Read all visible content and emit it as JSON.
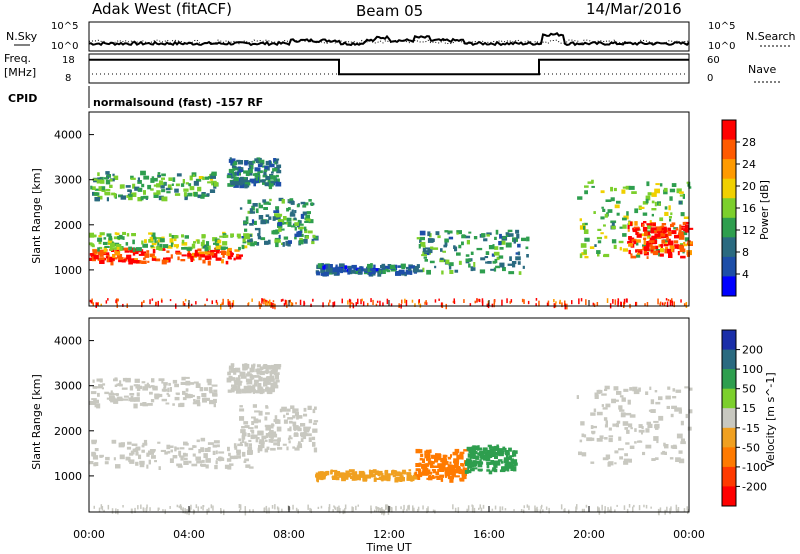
{
  "header": {
    "station": "Adak West (fitACF)",
    "beam": "Beam 05",
    "date": "14/Mar/2016"
  },
  "top_panels": {
    "nsky_label": "N.Sky",
    "nsky_ticks": [
      "10^5",
      "10^0"
    ],
    "nsearch_label": "N.Search",
    "nsearch_ticks": [
      "10^5",
      "10^0"
    ],
    "freq_label": "Freq.",
    "freq_unit": "[MHz]",
    "freq_ticks": [
      "18",
      "8"
    ],
    "nave_label": "Nave",
    "nave_ticks": [
      "60",
      "0"
    ],
    "cpid_label": "CPID",
    "cpid_text": "normalsound (fast) -157 RF"
  },
  "x_axis": {
    "label": "Time UT",
    "ticks": [
      "00:00",
      "04:00",
      "08:00",
      "12:00",
      "16:00",
      "20:00",
      "00:00"
    ]
  },
  "power_colorbar": {
    "label": "Power [dB]",
    "ticks": [
      "28",
      "24",
      "20",
      "16",
      "12",
      "8",
      "4"
    ],
    "colors": [
      "#ff0000",
      "#ff5a00",
      "#ff9a00",
      "#f0d000",
      "#7ccf2c",
      "#2e9e4e",
      "#2a6a80",
      "#1d4ea8",
      "#0000ff"
    ]
  },
  "velocity_colorbar": {
    "label": "Velocity [m s^-1]",
    "ticks": [
      "200",
      "100",
      "50",
      "15",
      "-15",
      "-50",
      "-100",
      "-200"
    ],
    "colors": [
      "#1a2ea8",
      "#2a6a80",
      "#2e9e4e",
      "#7ccf2c",
      "#c8c8c0",
      "#f0a020",
      "#ff7a00",
      "#ff3a00",
      "#ff0000"
    ]
  },
  "chart_data": [
    {
      "type": "line",
      "name": "N.Sky / N.Search",
      "x": [
        0,
        1,
        2,
        3,
        4,
        5,
        6,
        7,
        8,
        9,
        10,
        11,
        11.5,
        12,
        13,
        13.6,
        14,
        15,
        16,
        17,
        18,
        18.1,
        19,
        20,
        21,
        22,
        23,
        24
      ],
      "y": [
        1,
        1,
        1,
        1,
        1,
        1,
        1,
        1,
        2,
        2,
        1,
        2,
        3,
        2,
        3,
        2,
        2,
        1,
        1,
        1,
        1,
        4,
        1,
        1,
        1,
        1,
        1,
        1
      ],
      "xlim": [
        0,
        24
      ]
    },
    {
      "type": "line",
      "name": "Freq.",
      "x": [
        0,
        10,
        10,
        18,
        18,
        24
      ],
      "y": [
        16,
        16,
        11,
        11,
        16,
        16
      ],
      "ylim": [
        8,
        18
      ]
    },
    {
      "type": "heatmap",
      "title": "Power [dB]",
      "xlabel": "Time UT",
      "ylabel": "Slant Range [km]",
      "xlim": [
        0,
        24
      ],
      "ylim": [
        200,
        4500
      ],
      "yticks": [
        "1000",
        "2000",
        "3000",
        "4000"
      ],
      "regions": [
        {
          "t0": 0.0,
          "t1": 6.0,
          "r0": 1200,
          "r1": 1500,
          "value": 28
        },
        {
          "t0": 0.0,
          "t1": 6.5,
          "r0": 1500,
          "r1": 1850,
          "value": 14
        },
        {
          "t0": 6.0,
          "t1": 9.0,
          "r0": 1600,
          "r1": 2600,
          "value": 10
        },
        {
          "t0": 0.0,
          "t1": 5.0,
          "r0": 2600,
          "r1": 3200,
          "value": 12
        },
        {
          "t0": 5.5,
          "t1": 7.5,
          "r0": 2900,
          "r1": 3500,
          "value": 8
        },
        {
          "t0": 9.0,
          "t1": 13.0,
          "r0": 950,
          "r1": 1150,
          "value": 6
        },
        {
          "t0": 13.0,
          "t1": 17.5,
          "r0": 950,
          "r1": 1900,
          "value": 10
        },
        {
          "t0": 19.5,
          "t1": 24.0,
          "r0": 1300,
          "r1": 3000,
          "value": 14
        },
        {
          "t0": 21.5,
          "t1": 24.0,
          "r0": 1300,
          "r1": 2100,
          "value": 28
        }
      ]
    },
    {
      "type": "heatmap",
      "title": "Velocity [m s^-1]",
      "xlabel": "Time UT",
      "ylabel": "Slant Range [km]",
      "xlim": [
        0,
        24
      ],
      "ylim": [
        200,
        4500
      ],
      "yticks": [
        "1000",
        "2000",
        "3000",
        "4000"
      ],
      "regions": [
        {
          "t0": 0.0,
          "t1": 6.5,
          "r0": 1200,
          "r1": 1850,
          "value": 0
        },
        {
          "t0": 6.0,
          "t1": 9.0,
          "r0": 1600,
          "r1": 2600,
          "value": 0
        },
        {
          "t0": 0.0,
          "t1": 5.0,
          "r0": 2600,
          "r1": 3200,
          "value": 0
        },
        {
          "t0": 5.5,
          "t1": 7.5,
          "r0": 2900,
          "r1": 3500,
          "value": 0
        },
        {
          "t0": 9.0,
          "t1": 13.0,
          "r0": 950,
          "r1": 1150,
          "value": -40
        },
        {
          "t0": 13.0,
          "t1": 15.0,
          "r0": 950,
          "r1": 1600,
          "value": -80
        },
        {
          "t0": 15.0,
          "t1": 17.0,
          "r0": 1100,
          "r1": 1700,
          "value": 40
        },
        {
          "t0": 19.5,
          "t1": 24.0,
          "r0": 1300,
          "r1": 3000,
          "value": 0
        }
      ]
    }
  ]
}
